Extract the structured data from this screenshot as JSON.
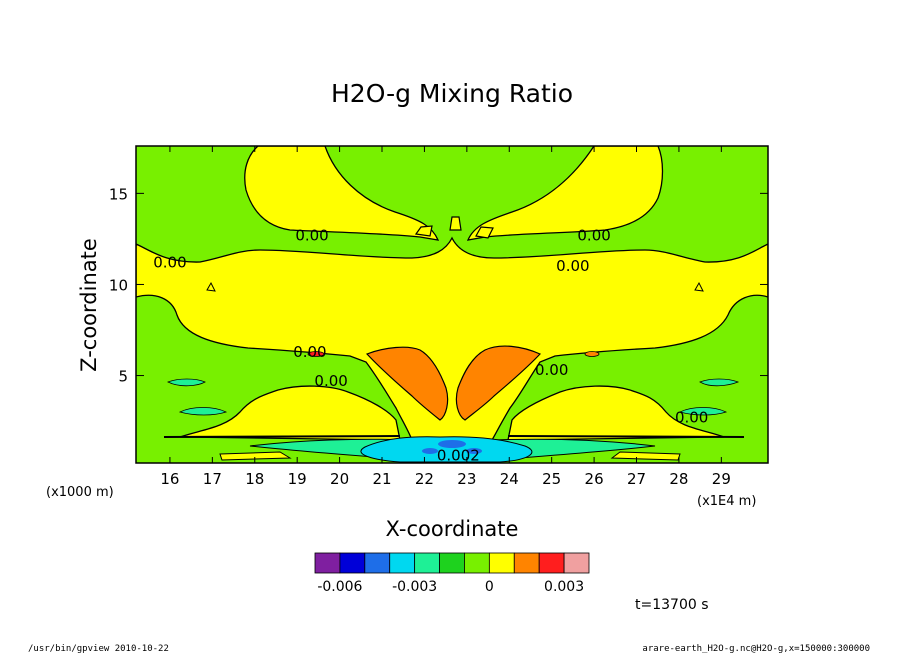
{
  "chart_data": {
    "type": "heatmap",
    "title": "H2O-g Mixing Ratio",
    "xlabel": "X-coordinate",
    "ylabel": "Z-coordinate",
    "x_unit": "(x1E4 m)",
    "y_unit": "(x1000 m)",
    "xlim": [
      15.2,
      30.1
    ],
    "ylim": [
      0.2,
      17.6
    ],
    "x_ticks": [
      16,
      17,
      18,
      19,
      20,
      21,
      22,
      23,
      24,
      25,
      26,
      27,
      28,
      29
    ],
    "y_ticks": [
      5,
      10,
      15
    ],
    "contour_labels": [
      {
        "text": "0.00",
        "x": 19.35,
        "z": 12.7
      },
      {
        "text": "0.00",
        "x": 26.0,
        "z": 12.7
      },
      {
        "text": "0.00",
        "x": 16.0,
        "z": 11.2
      },
      {
        "text": "0.00",
        "x": 25.5,
        "z": 11.0
      },
      {
        "text": "0.00",
        "x": 19.3,
        "z": 6.3
      },
      {
        "text": "0.00",
        "x": 25.0,
        "z": 5.3
      },
      {
        "text": "0.00",
        "x": 19.8,
        "z": 4.7
      },
      {
        "text": "0.00",
        "x": 28.3,
        "z": 2.7
      },
      {
        "text": "0.002",
        "x": 22.8,
        "z": 0.6
      }
    ],
    "colorbar": {
      "levels": [
        -0.007,
        -0.006,
        -0.005,
        -0.004,
        -0.003,
        -0.002,
        -0.001,
        0,
        0.001,
        0.002,
        0.003,
        0.004
      ],
      "colors": [
        "#7f1fa0",
        "#0000d8",
        "#1e6ee8",
        "#00d8f0",
        "#1ef096",
        "#1ed21e",
        "#78f000",
        "#ffff00",
        "#ff8400",
        "#ff1e1e",
        "#f0a0a0"
      ],
      "tick_labels": [
        {
          "text": "-0.006",
          "value": -0.006
        },
        {
          "text": "-0.003",
          "value": -0.003
        },
        {
          "text": "0",
          "value": 0
        },
        {
          "text": "0.003",
          "value": 0.003
        }
      ]
    },
    "regions": {
      "background_color": "#78f000",
      "positive_color": "#ffff00",
      "strong_positive_color": "#ff8400",
      "weak_negative_color": "#1ef096",
      "negative_color": "#00d8f0"
    }
  },
  "time_label": "t=13700 s",
  "footer_left": "/usr/bin/gpview   2010-10-22",
  "footer_right": "arare-earth_H2O-g.nc@H2O-g,x=150000:300000"
}
